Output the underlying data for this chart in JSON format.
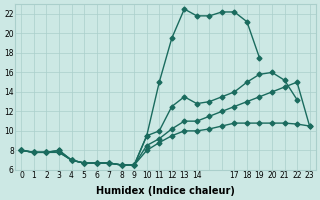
{
  "xlabel": "Humidex (Indice chaleur)",
  "ylabel": "",
  "bg_color": "#cce8e4",
  "line_color": "#1a6b5e",
  "grid_color": "#aacfcb",
  "xlim": [
    -0.5,
    23.5
  ],
  "ylim": [
    6,
    23
  ],
  "xtick_positions": [
    0,
    1,
    2,
    3,
    4,
    5,
    6,
    7,
    8,
    9,
    10,
    11,
    12,
    13,
    14,
    15,
    16,
    17,
    18,
    19,
    20,
    21,
    22,
    23
  ],
  "xtick_labels": [
    "0",
    "1",
    "2",
    "3",
    "4",
    "5",
    "6",
    "7",
    "8",
    "9",
    "10",
    "11",
    "12",
    "13",
    "14",
    "",
    "",
    "17",
    "18",
    "19",
    "20",
    "21",
    "22",
    "23"
  ],
  "yticks": [
    6,
    8,
    10,
    12,
    14,
    16,
    18,
    20,
    22
  ],
  "lines": [
    {
      "x": [
        0,
        1,
        2,
        3,
        4,
        5,
        6,
        7,
        8,
        9,
        10,
        11,
        12,
        13,
        14,
        15,
        16,
        17,
        18,
        19,
        20,
        21,
        22,
        23
      ],
      "y": [
        8.0,
        7.8,
        7.8,
        7.8,
        7.0,
        6.7,
        6.7,
        6.7,
        6.5,
        6.5,
        9.5,
        15.0,
        19.5,
        22.5,
        21.8,
        21.8,
        22.2,
        22.2,
        21.2,
        17.5,
        null,
        null,
        null,
        null
      ]
    },
    {
      "x": [
        0,
        1,
        2,
        3,
        4,
        5,
        6,
        7,
        8,
        9,
        10,
        11,
        12,
        13,
        14,
        15,
        16,
        17,
        18,
        19,
        20,
        21,
        22,
        23
      ],
      "y": [
        8.0,
        7.8,
        7.8,
        7.8,
        7.0,
        6.7,
        6.7,
        6.7,
        6.5,
        6.5,
        9.5,
        10.0,
        12.5,
        13.5,
        12.8,
        13.0,
        13.5,
        14.0,
        15.0,
        15.8,
        16.0,
        15.2,
        13.2,
        null
      ]
    },
    {
      "x": [
        0,
        1,
        2,
        3,
        4,
        5,
        6,
        7,
        8,
        9,
        10,
        11,
        12,
        13,
        14,
        15,
        16,
        17,
        18,
        19,
        20,
        21,
        22,
        23
      ],
      "y": [
        8.0,
        7.8,
        7.8,
        8.0,
        7.0,
        6.7,
        6.7,
        6.7,
        6.5,
        6.5,
        8.5,
        9.2,
        10.2,
        11.0,
        11.0,
        11.5,
        12.0,
        12.5,
        13.0,
        13.5,
        14.0,
        14.5,
        15.0,
        10.5
      ]
    },
    {
      "x": [
        0,
        1,
        2,
        3,
        4,
        5,
        6,
        7,
        8,
        9,
        10,
        11,
        12,
        13,
        14,
        15,
        16,
        17,
        18,
        19,
        20,
        21,
        22,
        23
      ],
      "y": [
        8.0,
        7.8,
        7.8,
        8.0,
        7.0,
        6.7,
        6.7,
        6.7,
        6.5,
        6.5,
        8.0,
        8.8,
        9.5,
        10.0,
        10.0,
        10.2,
        10.5,
        10.8,
        10.8,
        10.8,
        10.8,
        10.8,
        10.7,
        10.5
      ]
    }
  ],
  "marker": "D",
  "markersize": 2.5,
  "linewidth": 1.0,
  "tick_fontsize": 5.5,
  "label_fontsize": 7
}
